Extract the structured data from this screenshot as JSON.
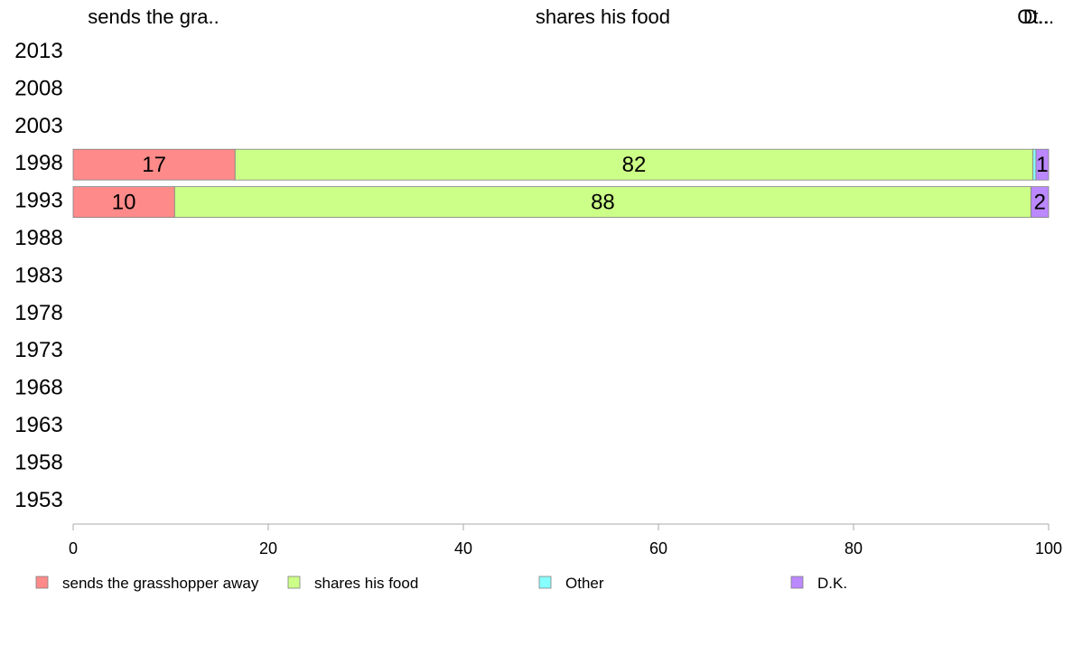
{
  "chart_data": {
    "type": "bar",
    "orientation": "horizontal",
    "stacked": true,
    "title": "",
    "xlabel": "",
    "ylabel": "",
    "xlim": [
      0,
      100
    ],
    "x_ticks": [
      0,
      20,
      40,
      60,
      80,
      100
    ],
    "categories": [
      "2013",
      "2008",
      "2003",
      "1998",
      "1993",
      "1988",
      "1983",
      "1978",
      "1973",
      "1968",
      "1963",
      "1958",
      "1953"
    ],
    "series": [
      {
        "name": "sends the grasshopper away",
        "color": "#ff8a8a",
        "values": [
          null,
          null,
          null,
          16.6,
          10.4,
          null,
          null,
          null,
          null,
          null,
          null,
          null,
          null
        ],
        "labels": [
          "",
          "",
          "",
          "17",
          "10",
          "",
          "",
          "",
          "",
          "",
          "",
          "",
          ""
        ]
      },
      {
        "name": "shares his food",
        "color": "#ccff88",
        "values": [
          null,
          null,
          null,
          81.8,
          87.8,
          null,
          null,
          null,
          null,
          null,
          null,
          null,
          null
        ],
        "labels": [
          "",
          "",
          "",
          "82",
          "88",
          "",
          "",
          "",
          "",
          "",
          "",
          "",
          ""
        ]
      },
      {
        "name": "Other",
        "color": "#88ffff",
        "values": [
          null,
          null,
          null,
          0.3,
          0.0,
          null,
          null,
          null,
          null,
          null,
          null,
          null,
          null
        ],
        "labels": [
          "",
          "",
          "",
          "",
          "",
          "",
          "",
          "",
          "",
          "",
          "",
          "",
          ""
        ]
      },
      {
        "name": "D.K.",
        "color": "#bb88ff",
        "values": [
          null,
          null,
          null,
          1.3,
          1.8,
          null,
          null,
          null,
          null,
          null,
          null,
          null,
          null
        ],
        "labels": [
          "",
          "",
          "",
          "1",
          "2",
          "",
          "",
          "",
          "",
          "",
          "",
          "",
          ""
        ]
      }
    ],
    "top_labels": [
      "sends the gra..",
      "shares his food",
      "Ot..",
      "D..."
    ],
    "legend": {
      "position": "bottom",
      "entries": [
        "sends the grasshopper away",
        "shares his food",
        "Other",
        "D.K."
      ]
    },
    "grid": false
  }
}
